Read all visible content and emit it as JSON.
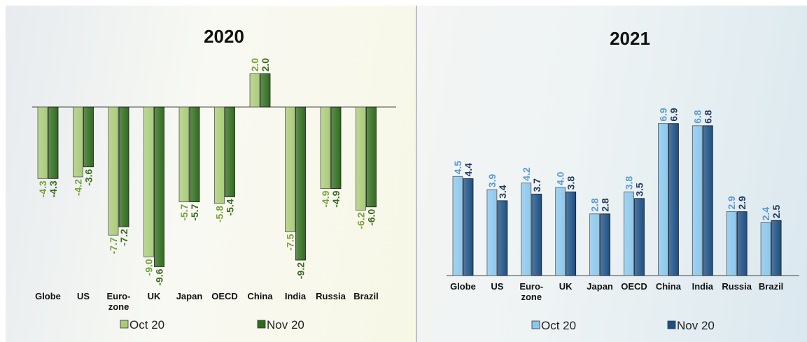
{
  "chart_data": [
    {
      "type": "bar",
      "title": "2020",
      "categories": [
        "Globe",
        "US",
        "Euro-\nzone",
        "UK",
        "Japan",
        "OECD",
        "China",
        "India",
        "Russia",
        "Brazil"
      ],
      "series": [
        {
          "name": "Oct 20",
          "values": [
            -4.3,
            -4.2,
            -7.7,
            -9.0,
            -5.7,
            -5.8,
            2.0,
            -7.5,
            -4.9,
            -6.2
          ],
          "color": "#a9cc78",
          "label_color": "#76a23a"
        },
        {
          "name": "Nov 20",
          "values": [
            -4.3,
            -3.6,
            -7.2,
            -9.6,
            -5.7,
            -5.4,
            2.0,
            -9.2,
            -4.9,
            -6.0
          ],
          "color": "#2f6b1c",
          "label_color": "#3a6a1e"
        }
      ],
      "ylim": [
        -10.0,
        2.2
      ],
      "legend": "bottom"
    },
    {
      "type": "bar",
      "title": "2021",
      "categories": [
        "Globe",
        "US",
        "Euro-\nzone",
        "UK",
        "Japan",
        "OECD",
        "China",
        "India",
        "Russia",
        "Brazil"
      ],
      "series": [
        {
          "name": "Oct 20",
          "values": [
            4.5,
            3.9,
            4.2,
            4.0,
            2.8,
            3.8,
            6.9,
            6.8,
            2.9,
            2.4
          ],
          "color": "#8cc8ee",
          "label_color": "#5b9bd5"
        },
        {
          "name": "Nov 20",
          "values": [
            4.4,
            3.4,
            3.7,
            3.8,
            2.8,
            3.5,
            6.9,
            6.8,
            2.9,
            2.5
          ],
          "color": "#1c4f85",
          "label_color": "#1f3a5c"
        }
      ],
      "ylim": [
        0,
        7.0
      ],
      "legend": "bottom"
    }
  ]
}
